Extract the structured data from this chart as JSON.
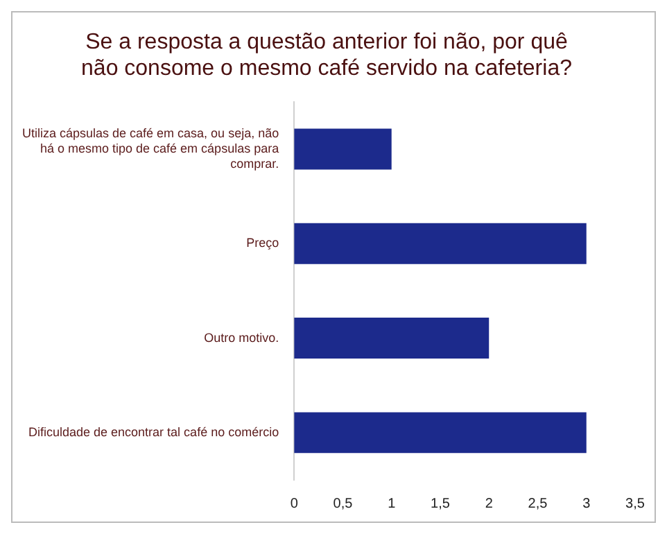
{
  "chart_data": {
    "type": "bar",
    "orientation": "horizontal",
    "title": "Se a resposta a questão anterior foi não, por quê não consome o mesmo café servido na cafeteria?",
    "categories": [
      "Utiliza cápsulas de café em casa, ou seja, não há o mesmo tipo de café em cápsulas para comprar.",
      "Preço",
      "Outro motivo.",
      "Dificuldade de encontrar tal café no comércio"
    ],
    "values": [
      1,
      3,
      2,
      3
    ],
    "color": "#1c2a8c",
    "xlim": [
      0,
      3.5
    ],
    "xticks": [
      0,
      {
        "value": 0.5,
        "label": "0,5"
      },
      1,
      {
        "value": 1.5,
        "label": "1,5"
      },
      2,
      {
        "value": 2.5,
        "label": "2,5"
      },
      3,
      {
        "value": 3.5,
        "label": "3,5"
      }
    ],
    "grid": false,
    "legend": false
  }
}
